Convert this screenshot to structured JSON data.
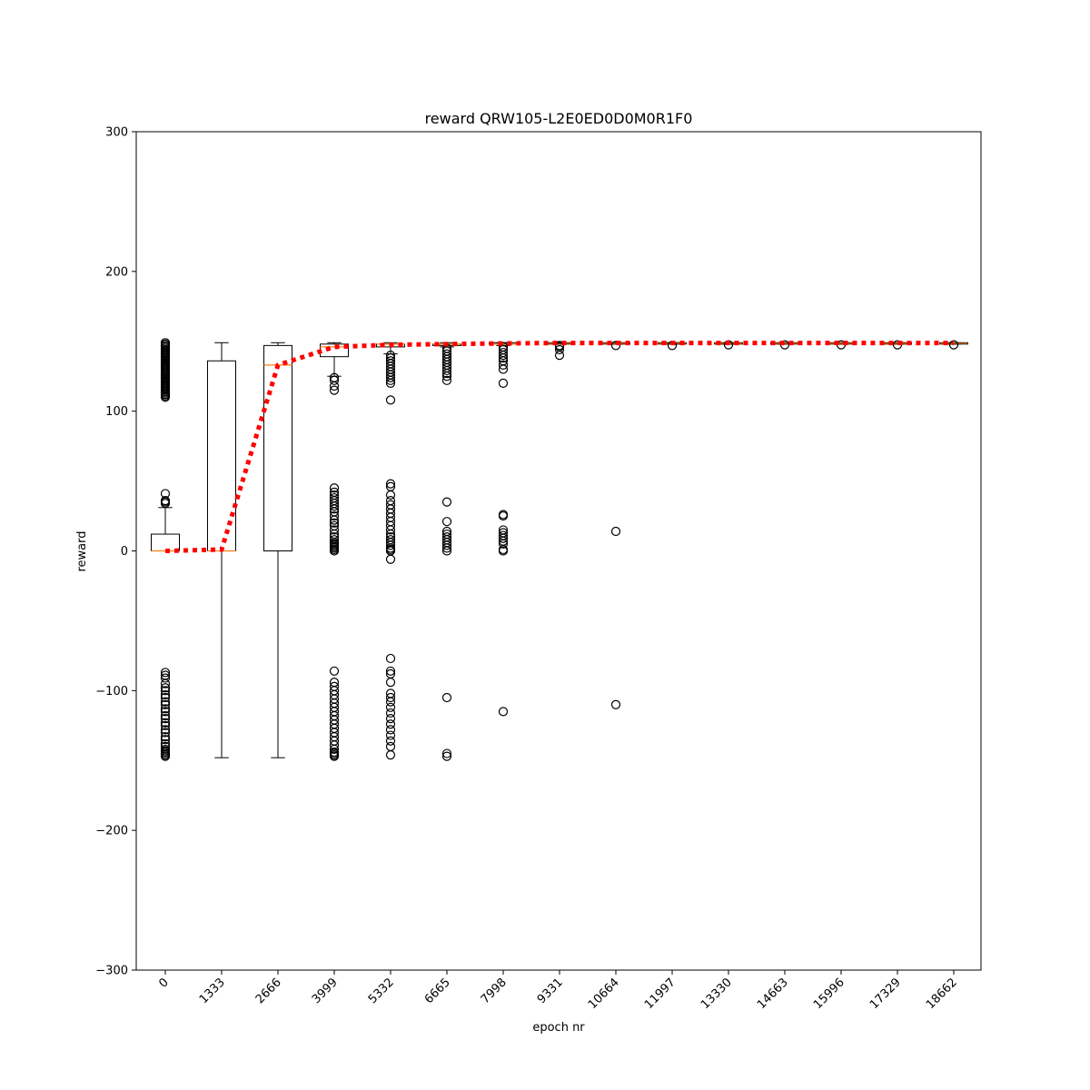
{
  "chart_data": {
    "type": "box",
    "title": "reward QRW105-L2E0ED0D0M0R1F0",
    "xlabel": "epoch nr",
    "ylabel": "reward",
    "ylim": [
      -300,
      300
    ],
    "yticks": [
      -300,
      -200,
      -100,
      0,
      100,
      200,
      300
    ],
    "grid": false,
    "categories": [
      "0",
      "1333",
      "2666",
      "3999",
      "5332",
      "6665",
      "7998",
      "9331",
      "10664",
      "11997",
      "13330",
      "14663",
      "15996",
      "17329",
      "18662"
    ],
    "boxes": [
      {
        "whisker_low": 0,
        "q1": 0,
        "median": 0,
        "q3": 12,
        "whisker_high": 31,
        "fliers": [
          149,
          148,
          147,
          146,
          145,
          144,
          143,
          142,
          141,
          140,
          139,
          138,
          137,
          136,
          135,
          134,
          133,
          132,
          131,
          130,
          129,
          128,
          127,
          126,
          125,
          124,
          123,
          122,
          121,
          120,
          119,
          118,
          117,
          116,
          115,
          114,
          113,
          112,
          111,
          110,
          41,
          36,
          35,
          34,
          -87,
          -89,
          -91,
          -95,
          -98,
          -100,
          -103,
          -105,
          -108,
          -110,
          -113,
          -115,
          -118,
          -120,
          -123,
          -125,
          -128,
          -130,
          -133,
          -135,
          -138,
          -140,
          -142,
          -143,
          -144,
          -145,
          -146,
          -147
        ]
      },
      {
        "whisker_low": -148,
        "q1": 0,
        "median": 0,
        "q3": 136,
        "whisker_high": 149,
        "fliers": []
      },
      {
        "whisker_low": -148,
        "q1": 0,
        "median": 133,
        "q3": 147,
        "whisker_high": 149,
        "fliers": []
      },
      {
        "whisker_low": 125,
        "q1": 139,
        "median": 146,
        "q3": 148,
        "whisker_high": 149,
        "fliers": [
          124,
          122,
          118,
          115,
          45,
          42,
          40,
          38,
          36,
          34,
          32,
          30,
          28,
          25,
          22,
          20,
          18,
          15,
          12,
          10,
          8,
          6,
          5,
          4,
          3,
          2,
          1,
          0,
          -86,
          -94,
          -97,
          -100,
          -103,
          -106,
          -109,
          -112,
          -115,
          -118,
          -121,
          -124,
          -127,
          -130,
          -133,
          -136,
          -139,
          -142,
          -144,
          -145,
          -146,
          -147
        ]
      },
      {
        "whisker_low": 141,
        "q1": 146,
        "median": 148,
        "q3": 148,
        "whisker_high": 149,
        "fliers": [
          140,
          138,
          136,
          134,
          132,
          130,
          128,
          126,
          124,
          122,
          120,
          108,
          48,
          46,
          40,
          36,
          33,
          30,
          27,
          24,
          21,
          18,
          15,
          12,
          10,
          8,
          6,
          4,
          2,
          1,
          0,
          -6,
          -77,
          -86,
          -88,
          -94,
          -102,
          -105,
          -108,
          -112,
          -116,
          -120,
          -124,
          -128,
          -132,
          -136,
          -140,
          -146
        ]
      },
      {
        "whisker_low": 146,
        "q1": 147,
        "median": 148,
        "q3": 148,
        "whisker_high": 149,
        "fliers": [
          145,
          143,
          141,
          139,
          137,
          135,
          133,
          131,
          129,
          127,
          125,
          122,
          35,
          21,
          14,
          12,
          10,
          8,
          6,
          4,
          2,
          0,
          -105,
          -145,
          -147
        ]
      },
      {
        "whisker_low": 147,
        "q1": 148,
        "median": 148,
        "q3": 149,
        "whisker_high": 149,
        "fliers": [
          146,
          144,
          142,
          140,
          138,
          136,
          133,
          130,
          120,
          26,
          25,
          15,
          13,
          11,
          9,
          7,
          5,
          1,
          0,
          -115
        ]
      },
      {
        "whisker_low": 148,
        "q1": 148,
        "median": 148.5,
        "q3": 149,
        "whisker_high": 149,
        "fliers": [
          147,
          146,
          144,
          140
        ]
      },
      {
        "whisker_low": 148,
        "q1": 148,
        "median": 148.5,
        "q3": 149,
        "whisker_high": 149,
        "fliers": [
          147,
          14,
          -110
        ]
      },
      {
        "whisker_low": 148,
        "q1": 148,
        "median": 148.5,
        "q3": 149,
        "whisker_high": 149,
        "fliers": [
          147
        ]
      },
      {
        "whisker_low": 148,
        "q1": 148,
        "median": 148.5,
        "q3": 149,
        "whisker_high": 149,
        "fliers": [
          147.5
        ]
      },
      {
        "whisker_low": 148,
        "q1": 148,
        "median": 148.5,
        "q3": 149,
        "whisker_high": 149,
        "fliers": [
          147.5
        ]
      },
      {
        "whisker_low": 148,
        "q1": 148,
        "median": 148.5,
        "q3": 149,
        "whisker_high": 149,
        "fliers": [
          147.5
        ]
      },
      {
        "whisker_low": 148,
        "q1": 148,
        "median": 148.5,
        "q3": 149,
        "whisker_high": 149,
        "fliers": [
          147.5
        ]
      },
      {
        "whisker_low": 148,
        "q1": 148,
        "median": 148.5,
        "q3": 149,
        "whisker_high": 149,
        "fliers": [
          147.5
        ]
      }
    ],
    "mean_line": {
      "style": "dotted",
      "color": "#ff0000",
      "values": [
        0,
        1,
        133,
        146,
        147.5,
        148,
        148.5,
        148.8,
        148.8,
        148.8,
        148.8,
        148.8,
        148.8,
        148.8,
        148.8
      ]
    },
    "colors": {
      "box": "#000000",
      "median": "#ff7f0e",
      "mean_line": "#ff0000",
      "flier": "#000000"
    }
  }
}
